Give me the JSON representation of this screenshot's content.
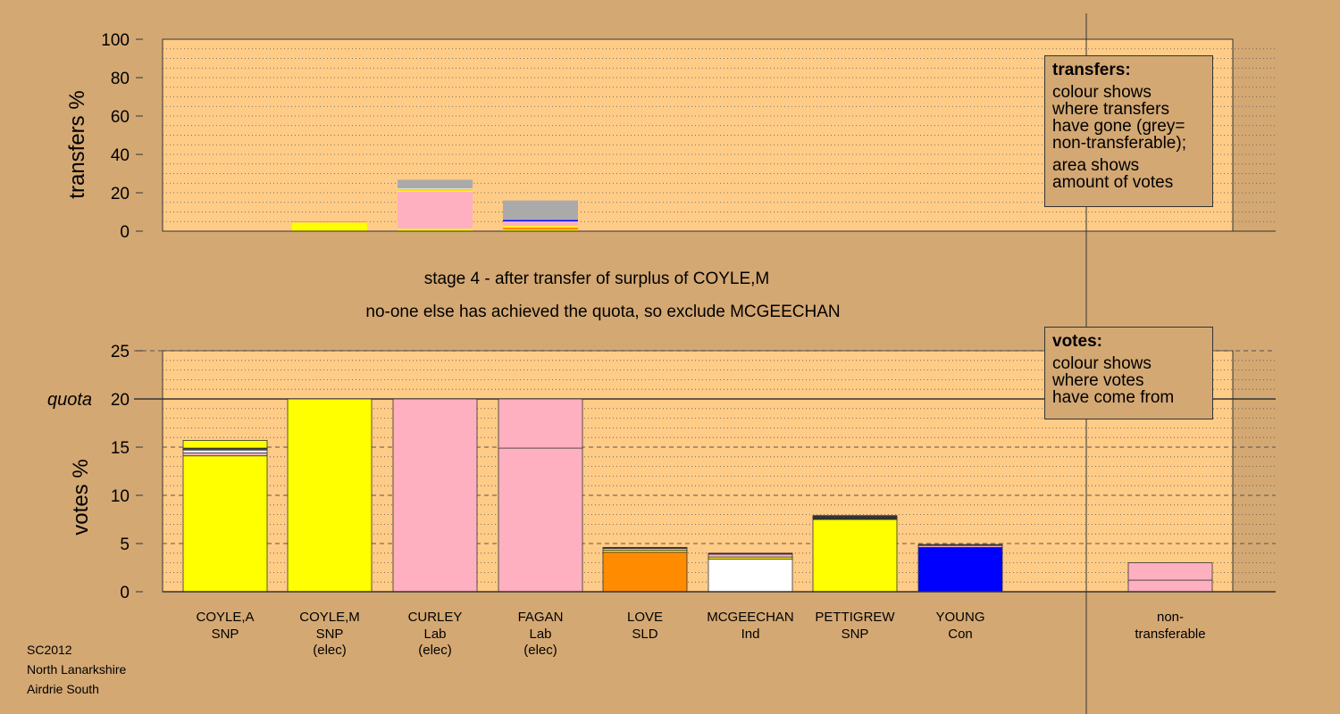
{
  "chart_data": [
    {
      "type": "bar",
      "stacked": true,
      "ylabel": "transfers %",
      "ylim": [
        0,
        100
      ],
      "yticks": [
        0,
        20,
        40,
        60,
        80,
        100
      ],
      "grid": "dotted",
      "bars": [
        {
          "category": "COYLE,M",
          "segments": [
            {
              "value": 4.5,
              "color": "#FFFF00"
            },
            {
              "value": 0.3,
              "color": "#FFB0C0"
            },
            {
              "value": 0.3,
              "color": "#FF8C00"
            }
          ]
        },
        {
          "category": "CURLEY",
          "segments": [
            {
              "value": 1.2,
              "color": "#FFFF00"
            },
            {
              "value": 19.3,
              "color": "#FFB0C0"
            },
            {
              "value": 0.8,
              "color": "#FFFF00"
            },
            {
              "value": 0.4,
              "color": "#FF8C00"
            },
            {
              "value": 0.5,
              "color": "#FFFFFF"
            },
            {
              "value": 4.6,
              "color": "#AAAAAA"
            }
          ]
        },
        {
          "category": "FAGAN",
          "segments": [
            {
              "value": 0.8,
              "color": "#FFFF00"
            },
            {
              "value": 1.1,
              "color": "#FF8C00"
            },
            {
              "value": 0.8,
              "color": "#FFFF00"
            },
            {
              "value": 2.4,
              "color": "#FFB0C0"
            },
            {
              "value": 0.7,
              "color": "#0000FF"
            },
            {
              "value": 10.2,
              "color": "#AAAAAA"
            }
          ]
        }
      ]
    },
    {
      "type": "bar",
      "stacked": true,
      "ylabel": "votes %",
      "ylim": [
        0,
        25
      ],
      "yticks": [
        0,
        5,
        10,
        15,
        20,
        25
      ],
      "quota": 20,
      "quota_label": "quota",
      "grid": "dotted",
      "bars": [
        {
          "name": "COYLE,A",
          "party": "SNP",
          "status": "",
          "segments": [
            {
              "value": 14.1,
              "color": "#FFFF00"
            },
            {
              "value": 0.3,
              "color": "#FFB0C0"
            },
            {
              "value": 0.3,
              "color": "#FFFFFF"
            },
            {
              "value": 0.1,
              "color": "#FF8C00"
            },
            {
              "value": 0.1,
              "color": "#333333"
            },
            {
              "value": 0.8,
              "color": "#FFFF00"
            }
          ]
        },
        {
          "name": "COYLE,M",
          "party": "SNP",
          "status": "(elec)",
          "segments": [
            {
              "value": 20,
              "color": "#FFFF00"
            }
          ]
        },
        {
          "name": "CURLEY",
          "party": "Lab",
          "status": "(elec)",
          "segments": [
            {
              "value": 20,
              "color": "#FFB0C0"
            }
          ]
        },
        {
          "name": "FAGAN",
          "party": "Lab",
          "status": "(elec)",
          "segments": [
            {
              "value": 14.9,
              "color": "#FFB0C0"
            },
            {
              "value": 5.1,
              "color": "#FFB0C0"
            }
          ]
        },
        {
          "name": "LOVE",
          "party": "SLD",
          "status": "",
          "segments": [
            {
              "value": 4.1,
              "color": "#FF8C00"
            },
            {
              "value": 0.2,
              "color": "#FFFF00"
            },
            {
              "value": 0.2,
              "color": "#FFB0C0"
            },
            {
              "value": 0.1,
              "color": "#333333"
            }
          ]
        },
        {
          "name": "MCGEECHAN",
          "party": "Ind",
          "status": "",
          "segments": [
            {
              "value": 3.4,
              "color": "#FFFFFF"
            },
            {
              "value": 0.2,
              "color": "#FFFF00"
            },
            {
              "value": 0.3,
              "color": "#FFB0C0"
            },
            {
              "value": 0.1,
              "color": "#333333"
            }
          ]
        },
        {
          "name": "PETTIGREW",
          "party": "SNP",
          "status": "",
          "segments": [
            {
              "value": 7.5,
              "color": "#FFFF00"
            },
            {
              "value": 0.2,
              "color": "#333333"
            },
            {
              "value": 0.2,
              "color": "#333333"
            }
          ]
        },
        {
          "name": "YOUNG",
          "party": "Con",
          "status": "",
          "segments": [
            {
              "value": 4.6,
              "color": "#0000FF"
            },
            {
              "value": 0.2,
              "color": "#FFB0C0"
            },
            {
              "value": 0.1,
              "color": "#333333"
            }
          ]
        },
        {
          "name": "non-",
          "party": "transferable",
          "status": "",
          "segments": [
            {
              "value": 1.2,
              "color": "#FFB0C0"
            },
            {
              "value": 1.8,
              "color": "#FFB0C0"
            }
          ]
        }
      ]
    }
  ],
  "stage_text": "stage 4 - after transfer of surplus of COYLE,M",
  "decision_text": "no-one else has achieved the quota, so exclude MCGEECHAN",
  "legend_transfers": {
    "title": "transfers:",
    "lines1": [
      "colour shows",
      "where transfers",
      "have gone (grey=",
      "non-transferable);"
    ],
    "lines2": [
      "area shows",
      "amount of votes"
    ]
  },
  "legend_votes": {
    "title": "votes:",
    "lines": [
      "colour shows",
      "where votes",
      "have come from"
    ]
  },
  "footer": [
    "SC2012",
    "North Lanarkshire",
    "Airdrie South"
  ],
  "colors": {
    "background": "#D4A873",
    "plot_area": "#FFCC88",
    "snp": "#FFFF00",
    "lab": "#FFB0C0",
    "sld": "#FF8C00",
    "ind": "#FFFFFF",
    "con": "#0000FF",
    "non_transferable": "#AAAAAA"
  }
}
